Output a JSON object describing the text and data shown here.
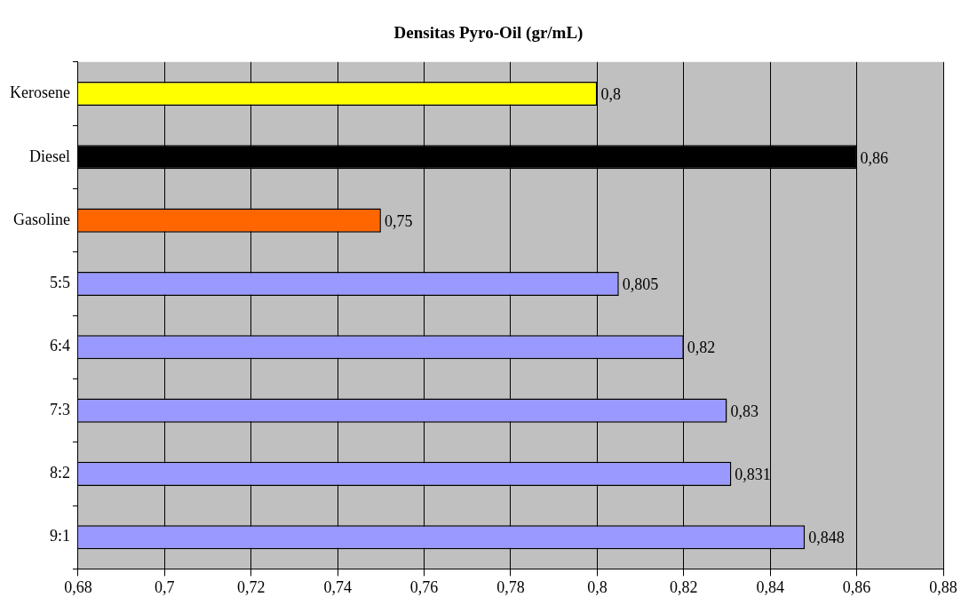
{
  "chart_data": {
    "type": "bar",
    "orientation": "horizontal",
    "title": "Densitas Pyro-Oil  (gr/mL)",
    "categories": [
      "Kerosene",
      "Diesel",
      "Gasoline",
      "5:5",
      "6:4",
      "7:3",
      "8:2",
      "9:1"
    ],
    "values": [
      0.8,
      0.86,
      0.75,
      0.805,
      0.82,
      0.83,
      0.831,
      0.848
    ],
    "colors": [
      "#ffff00",
      "#000000",
      "#ff6600",
      "#9999ff",
      "#9999ff",
      "#9999ff",
      "#9999ff",
      "#9999ff"
    ],
    "value_labels": [
      "0,8",
      "0,86",
      "0,75",
      "0,805",
      "0,82",
      "0,83",
      "0,831",
      "0,848"
    ],
    "xlim": [
      0.68,
      0.88
    ],
    "xticks": [
      {
        "value": 0.68,
        "label": "0,68"
      },
      {
        "value": 0.7,
        "label": "0,7"
      },
      {
        "value": 0.72,
        "label": "0,72"
      },
      {
        "value": 0.74,
        "label": "0,74"
      },
      {
        "value": 0.76,
        "label": "0,76"
      },
      {
        "value": 0.78,
        "label": "0,78"
      },
      {
        "value": 0.8,
        "label": "0,8"
      },
      {
        "value": 0.82,
        "label": "0,82"
      },
      {
        "value": 0.84,
        "label": "0,84"
      },
      {
        "value": 0.86,
        "label": "0,86"
      },
      {
        "value": 0.88,
        "label": "0,88"
      }
    ],
    "grid": "x",
    "legend": false
  }
}
